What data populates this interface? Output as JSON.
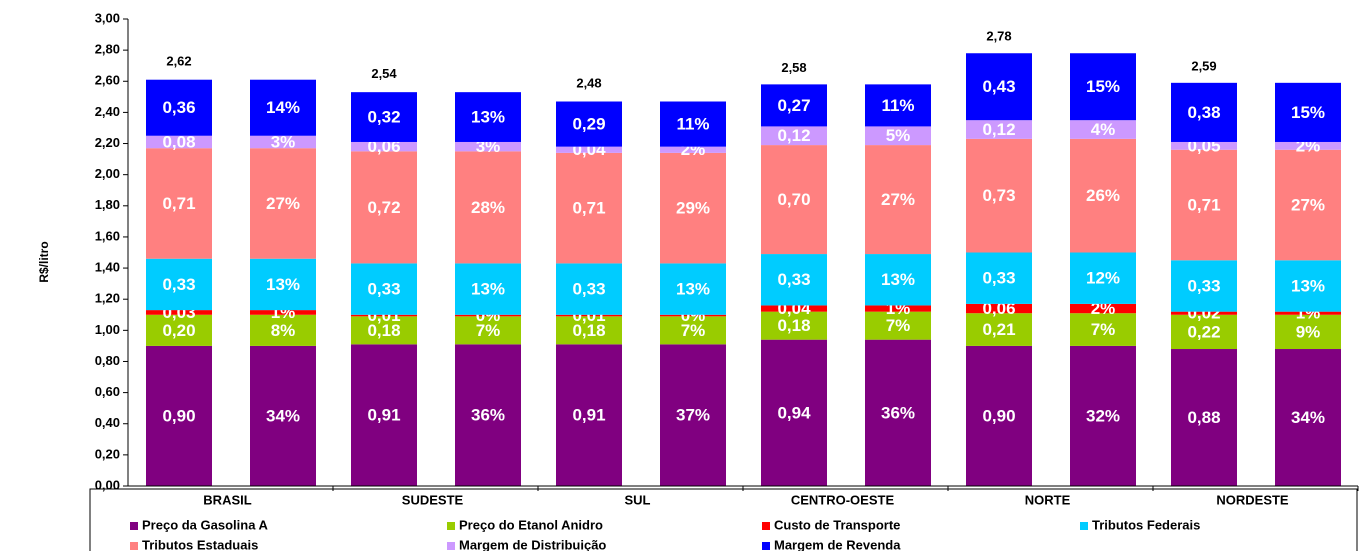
{
  "chart_data": {
    "type": "stacked-bar",
    "y_label": "R$/litro",
    "categories": [
      "BRASIL",
      "SUDESTE",
      "SUL",
      "CENTRO-OESTE",
      "NORTE",
      "NORDESTE"
    ],
    "ylim": [
      0,
      3
    ],
    "yticks": [
      {
        "value": 0,
        "label": "0,00"
      },
      {
        "value": 0.2,
        "label": "0,20"
      },
      {
        "value": 0.4,
        "label": "0,40"
      },
      {
        "value": 0.6,
        "label": "0,60"
      },
      {
        "value": 0.8,
        "label": "0,80"
      },
      {
        "value": 1,
        "label": "1,00"
      },
      {
        "value": 1.2,
        "label": "1,20"
      },
      {
        "value": 1.4,
        "label": "1,40"
      },
      {
        "value": 1.6,
        "label": "1,60"
      },
      {
        "value": 1.8,
        "label": "1,80"
      },
      {
        "value": 2,
        "label": "2,00"
      },
      {
        "value": 2.2,
        "label": "2,20"
      },
      {
        "value": 2.4,
        "label": "2,40"
      },
      {
        "value": 2.6,
        "label": "2,60"
      },
      {
        "value": 2.8,
        "label": "2,80"
      },
      {
        "value": 3,
        "label": "3,00"
      }
    ],
    "totals": [
      2.62,
      2.54,
      2.48,
      2.58,
      2.78,
      2.59
    ],
    "total_labels": [
      "2,62",
      "2,54",
      "2,48",
      "2,58",
      "2,78",
      "2,59"
    ],
    "series": [
      {
        "name": "Preço da Gasolina A",
        "color": "#800080",
        "values": [
          0.9,
          0.91,
          0.91,
          0.94,
          0.9,
          0.88
        ],
        "value_labels": [
          "0,90",
          "0,91",
          "0,91",
          "0,94",
          "0,90",
          "0,88"
        ],
        "shares": [
          34,
          36,
          37,
          36,
          32,
          34
        ],
        "share_labels": [
          "34%",
          "36%",
          "37%",
          "36%",
          "32%",
          "34%"
        ]
      },
      {
        "name": "Preço do Etanol Anidro",
        "color": "#99cc00",
        "values": [
          0.2,
          0.18,
          0.18,
          0.18,
          0.21,
          0.22
        ],
        "value_labels": [
          "0,20",
          "0,18",
          "0,18",
          "0,18",
          "0,21",
          "0,22"
        ],
        "shares": [
          8,
          7,
          7,
          7,
          7,
          9
        ],
        "share_labels": [
          "8%",
          "7%",
          "7%",
          "7%",
          "7%",
          "9%"
        ]
      },
      {
        "name": "Custo de Transporte",
        "color": "#ff0000",
        "values": [
          0.03,
          0.01,
          0.01,
          0.04,
          0.06,
          0.02
        ],
        "value_labels": [
          "0,03",
          "0,01",
          "0,01",
          "0,04",
          "0,06",
          "0,02"
        ],
        "shares": [
          1,
          0,
          0,
          1,
          2,
          1
        ],
        "share_labels": [
          "1%",
          "0%",
          "0%",
          "1%",
          "2%",
          "1%"
        ]
      },
      {
        "name": "Tributos Federais",
        "color": "#00ccff",
        "values": [
          0.33,
          0.33,
          0.33,
          0.33,
          0.33,
          0.33
        ],
        "value_labels": [
          "0,33",
          "0,33",
          "0,33",
          "0,33",
          "0,33",
          "0,33"
        ],
        "shares": [
          13,
          13,
          13,
          13,
          12,
          13
        ],
        "share_labels": [
          "13%",
          "13%",
          "13%",
          "13%",
          "12%",
          "13%"
        ]
      },
      {
        "name": "Tributos Estaduais",
        "color": "#ff8080",
        "values": [
          0.71,
          0.72,
          0.71,
          0.7,
          0.73,
          0.71
        ],
        "value_labels": [
          "0,71",
          "0,72",
          "0,71",
          "0,70",
          "0,73",
          "0,71"
        ],
        "shares": [
          27,
          28,
          29,
          27,
          26,
          27
        ],
        "share_labels": [
          "27%",
          "28%",
          "29%",
          "27%",
          "26%",
          "27%"
        ]
      },
      {
        "name": "Margem de Distribuição",
        "color": "#cc99ff",
        "values": [
          0.08,
          0.06,
          0.04,
          0.12,
          0.12,
          0.05
        ],
        "value_labels": [
          "0,08",
          "0,06",
          "0,04",
          "0,12",
          "0,12",
          "0,05"
        ],
        "shares": [
          3,
          3,
          2,
          5,
          4,
          2
        ],
        "share_labels": [
          "3%",
          "3%",
          "2%",
          "5%",
          "4%",
          "2%"
        ]
      },
      {
        "name": "Margem de Revenda",
        "color": "#0000ff",
        "values": [
          0.36,
          0.32,
          0.29,
          0.27,
          0.43,
          0.38
        ],
        "value_labels": [
          "0,36",
          "0,32",
          "0,29",
          "0,27",
          "0,43",
          "0,38"
        ],
        "shares": [
          14,
          13,
          11,
          11,
          15,
          15
        ],
        "share_labels": [
          "14%",
          "13%",
          "11%",
          "11%",
          "15%",
          "15%"
        ]
      }
    ]
  }
}
